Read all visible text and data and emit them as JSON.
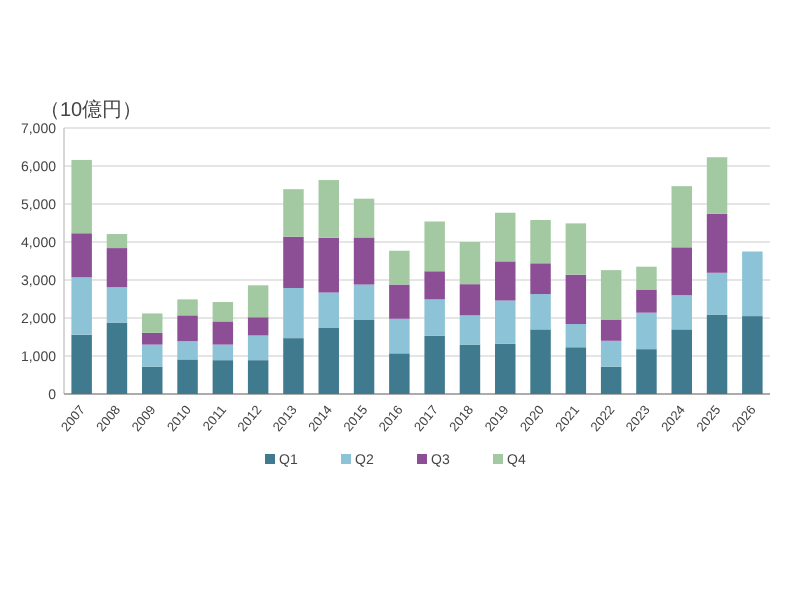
{
  "chart_data": {
    "type": "bar",
    "stacked": true,
    "ylabel": "（10億円）",
    "categories": [
      "2007",
      "2008",
      "2009",
      "2010",
      "2011",
      "2012",
      "2013",
      "2014",
      "2015",
      "2016",
      "2017",
      "2018",
      "2019",
      "2020",
      "2021",
      "2022",
      "2023",
      "2024",
      "2025",
      "2026"
    ],
    "series": [
      {
        "name": "Q1",
        "color": "#3f7a8f",
        "values": [
          1560,
          1880,
          720,
          910,
          890,
          890,
          1470,
          1750,
          1960,
          1070,
          1530,
          1300,
          1320,
          1700,
          1230,
          720,
          1180,
          1700,
          2090,
          2050
        ]
      },
      {
        "name": "Q2",
        "color": "#8cc3d6",
        "values": [
          1510,
          930,
          580,
          480,
          410,
          650,
          1320,
          920,
          920,
          910,
          960,
          770,
          1140,
          930,
          610,
          680,
          960,
          900,
          1100,
          1700
        ]
      },
      {
        "name": "Q3",
        "color": "#8c4f96",
        "values": [
          1160,
          1030,
          310,
          680,
          610,
          480,
          1350,
          1440,
          1240,
          900,
          740,
          820,
          1030,
          810,
          1300,
          560,
          610,
          1260,
          1550,
          null
        ]
      },
      {
        "name": "Q4",
        "color": "#a3c9a3",
        "values": [
          1930,
          370,
          510,
          420,
          510,
          840,
          1250,
          1520,
          1020,
          890,
          1310,
          1110,
          1280,
          1140,
          1350,
          1300,
          600,
          1610,
          1490,
          null
        ]
      }
    ],
    "ylim": [
      0,
      7000
    ],
    "yticks": [
      0,
      {
        "value": 1000,
        "label": "1,000"
      },
      {
        "value": 2000,
        "label": "2,000"
      },
      {
        "value": 3000,
        "label": "3,000"
      },
      {
        "value": 4000,
        "label": "4,000"
      },
      {
        "value": 5000,
        "label": "5,000"
      },
      {
        "value": 6000,
        "label": "6,000"
      },
      {
        "value": 7000,
        "label": "7,000"
      }
    ],
    "grid": "y",
    "legend": "bottom"
  }
}
